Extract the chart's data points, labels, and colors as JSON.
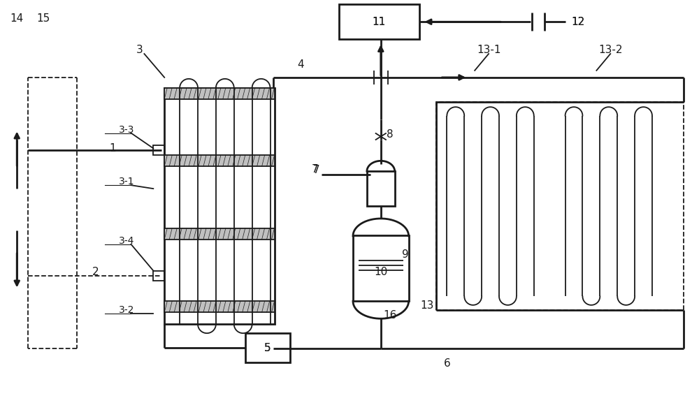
{
  "bg": "#ffffff",
  "lc": "#1a1a1a",
  "lw": 2.0,
  "lwt": 1.3,
  "fs": 11
}
